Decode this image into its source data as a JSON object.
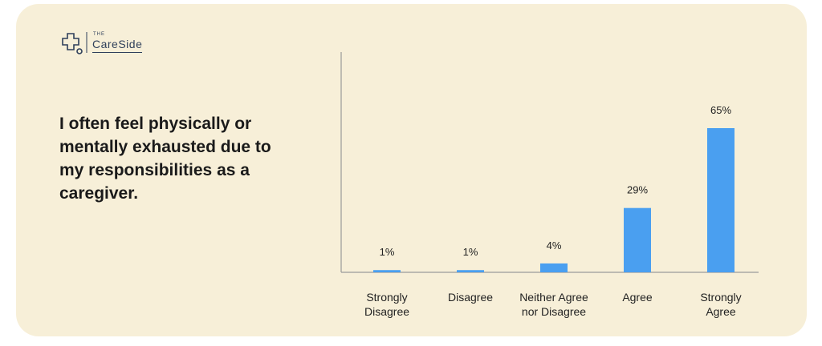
{
  "logo": {
    "small": "THE",
    "name": "CareSide"
  },
  "chart_data": {
    "type": "bar",
    "title": "I often feel physically or mentally exhausted due to my responsibilities as a caregiver.",
    "categories": [
      "Strongly Disagree",
      "Disagree",
      "Neither Agree nor Disagree",
      "Agree",
      "Strongly Agree"
    ],
    "values": [
      1,
      1,
      4,
      29,
      65
    ],
    "value_labels": [
      "1%",
      "1%",
      "4%",
      "29%",
      "65%"
    ],
    "color": "#4a9ff0"
  }
}
